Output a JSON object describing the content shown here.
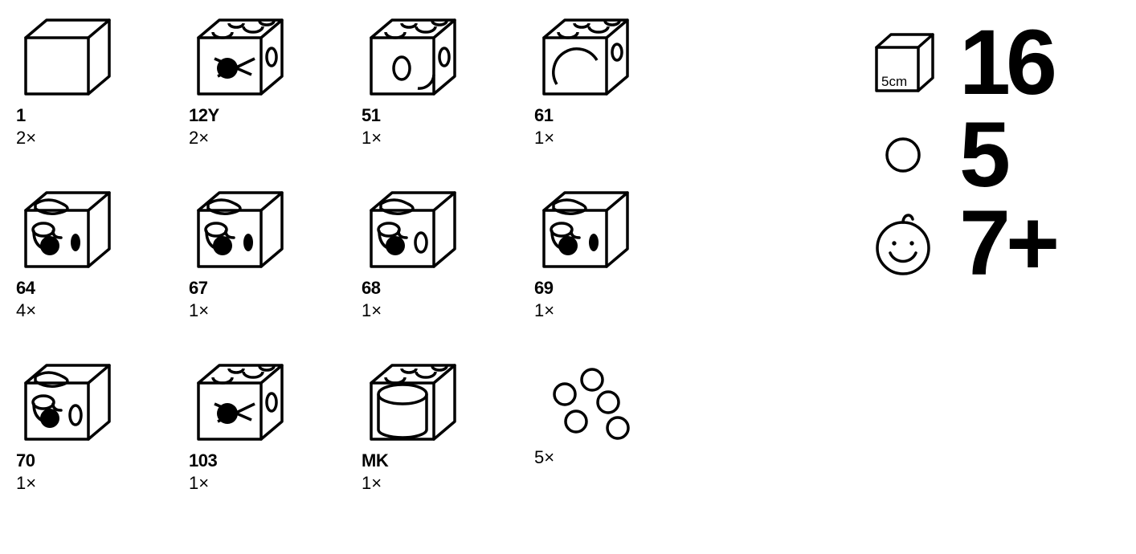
{
  "stroke": "#000000",
  "stroke_width": 3.5,
  "background": "#ffffff",
  "parts": [
    {
      "label": "1",
      "qty": "2×",
      "variant": "plain"
    },
    {
      "label": "12Y",
      "qty": "2×",
      "variant": "notched-ball-tube"
    },
    {
      "label": "51",
      "qty": "1×",
      "variant": "notched-hole"
    },
    {
      "label": "61",
      "qty": "1×",
      "variant": "notched-arc"
    },
    {
      "label": "64",
      "qty": "4×",
      "variant": "elbow"
    },
    {
      "label": "67",
      "qty": "1×",
      "variant": "elbow"
    },
    {
      "label": "68",
      "qty": "1×",
      "variant": "elbow-out"
    },
    {
      "label": "69",
      "qty": "1×",
      "variant": "elbow"
    },
    {
      "label": "70",
      "qty": "1×",
      "variant": "elbow-out"
    },
    {
      "label": "103",
      "qty": "1×",
      "variant": "notched-ball-tube"
    },
    {
      "label": "MK",
      "qty": "1×",
      "variant": "catcher"
    },
    {
      "label": "",
      "qty": "5×",
      "variant": "marbles"
    }
  ],
  "summary": {
    "cube_label": "5cm",
    "cube_count": "16",
    "marble_count": "5",
    "age": "7+"
  }
}
